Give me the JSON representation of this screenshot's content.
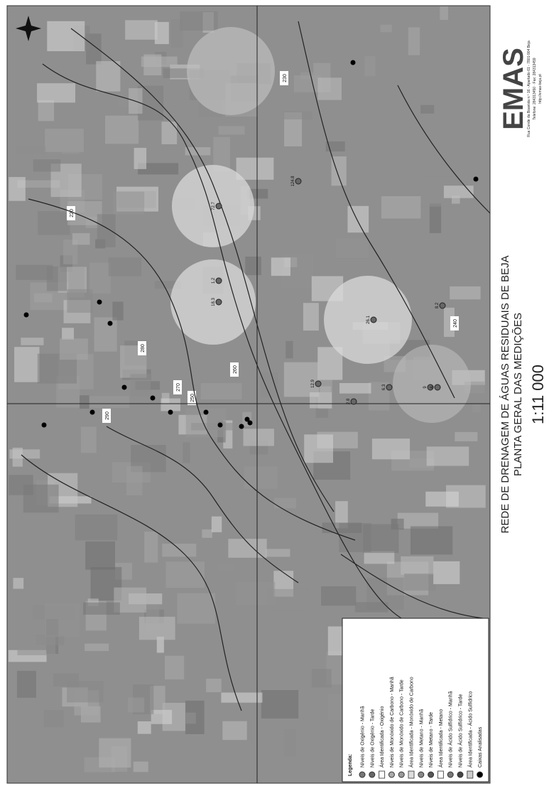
{
  "header": {
    "title": "REDE DE DRENAGEM DE ÁGUAS RESIDUAIS DE BEJA",
    "subtitle": "PLANTA GERAL DAS MEDIÇÕES",
    "scale": "1:11 000"
  },
  "logo": {
    "name": "EMAS",
    "lines": [
      "Rua Conde da Boavista n.º 16 - Apartado 61 - 7801-904 Beja",
      "Telefone: 284313450 · Fax: 284313459",
      "http://emas-beja.pt"
    ]
  },
  "legend": {
    "title": "Legenda:",
    "items": [
      "Níveis de Oxigénio - Manhã",
      "Níveis de Oxigénio - Tarde",
      "Área Identificada - Oxigénio",
      "Níveis de Monóxido de Carbono - Manhã",
      "Níveis de Monóxido de Carbono - Tarde",
      "Área Identificada - Monóxido de Carbono",
      "Níveis de Metano - Manhã",
      "Níveis de Metano - Tarde",
      "Área Identificada - Metano",
      "Níveis de Ácido Sulfídrico - Manhã",
      "Níveis de Ácido Sulfídrico - Tarde",
      "Área Identificada - Ácido Sulfídrico",
      "Caixas Analisadas"
    ]
  },
  "contours": [
    "220",
    "230",
    "240",
    "250",
    "260",
    "270",
    "280",
    "290"
  ],
  "measurements": [
    "72.7",
    "18.3",
    "26.1",
    "124.8",
    "12.9",
    "1.2",
    "8.2",
    "6.3",
    "2.8",
    "9",
    "6"
  ]
}
